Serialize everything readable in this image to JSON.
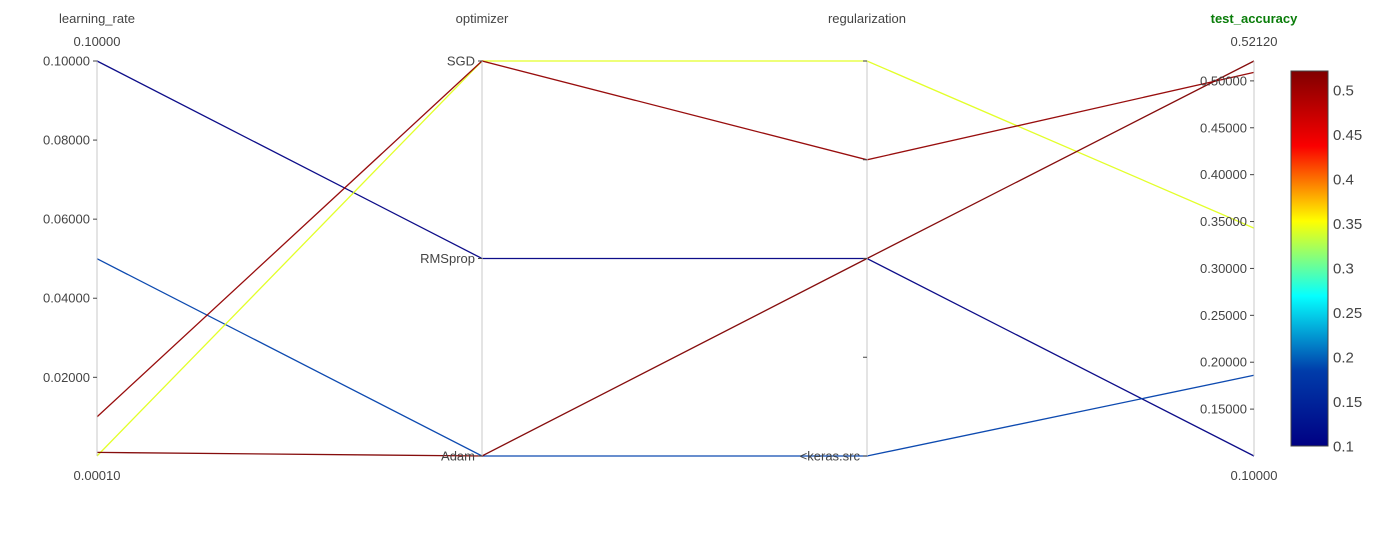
{
  "chart_data": {
    "type": "parallel_coordinates",
    "dimensions": [
      {
        "label": "learning_rate",
        "kind": "numeric",
        "range": [
          0.0001,
          0.1
        ],
        "range_labels": {
          "max": "0.10000",
          "min": "0.00010"
        },
        "ticks": [
          {
            "value": 0.1,
            "label": "0.10000"
          },
          {
            "value": 0.08,
            "label": "0.08000"
          },
          {
            "value": 0.06,
            "label": "0.06000"
          },
          {
            "value": 0.04,
            "label": "0.04000"
          },
          {
            "value": 0.02,
            "label": "0.02000"
          }
        ]
      },
      {
        "label": "optimizer",
        "kind": "categorical",
        "categories": [
          "Adam",
          "RMSprop",
          "SGD"
        ]
      },
      {
        "label": "regularization",
        "kind": "categorical",
        "categories": [
          "<keras.src",
          "",
          "",
          "",
          ""
        ],
        "visible_label": "<keras.src"
      },
      {
        "label": "test_accuracy",
        "kind": "numeric",
        "active": true,
        "range": [
          0.1,
          0.5212
        ],
        "range_labels": {
          "max": "0.52120",
          "min": "0.10000"
        },
        "ticks": [
          {
            "value": 0.5,
            "label": "0.50000"
          },
          {
            "value": 0.45,
            "label": "0.45000"
          },
          {
            "value": 0.4,
            "label": "0.40000"
          },
          {
            "value": 0.35,
            "label": "0.35000"
          },
          {
            "value": 0.3,
            "label": "0.30000"
          },
          {
            "value": 0.25,
            "label": "0.25000"
          },
          {
            "value": 0.2,
            "label": "0.20000"
          },
          {
            "value": 0.15,
            "label": "0.15000"
          }
        ]
      }
    ],
    "records": [
      {
        "learning_rate": 0.1,
        "optimizer": "RMSprop",
        "regularization": 2,
        "test_accuracy": 0.1
      },
      {
        "learning_rate": 0.05,
        "optimizer": "Adam",
        "regularization": 0,
        "test_accuracy": 0.186
      },
      {
        "learning_rate": 0.0001,
        "optimizer": "SGD",
        "regularization": 4,
        "test_accuracy": 0.343
      },
      {
        "learning_rate": 0.01,
        "optimizer": "SGD",
        "regularization": 3,
        "test_accuracy": 0.509
      },
      {
        "learning_rate": 0.001,
        "optimizer": "Adam",
        "regularization": 2,
        "test_accuracy": 0.5212
      }
    ],
    "color_dimension": "test_accuracy",
    "colorscale": [
      "#000083",
      "#003caa",
      "#05ffff",
      "#ffff00",
      "#fa0000",
      "#800000"
    ],
    "colorbar": {
      "range": [
        0.1,
        0.5212
      ],
      "ticks": [
        {
          "value": 0.5,
          "label": "0.5"
        },
        {
          "value": 0.45,
          "label": "0.45"
        },
        {
          "value": 0.4,
          "label": "0.4"
        },
        {
          "value": 0.35,
          "label": "0.35"
        },
        {
          "value": 0.3,
          "label": "0.3"
        },
        {
          "value": 0.25,
          "label": "0.25"
        },
        {
          "value": 0.2,
          "label": "0.2"
        },
        {
          "value": 0.15,
          "label": "0.15"
        },
        {
          "value": 0.1,
          "label": "0.1"
        }
      ]
    }
  }
}
